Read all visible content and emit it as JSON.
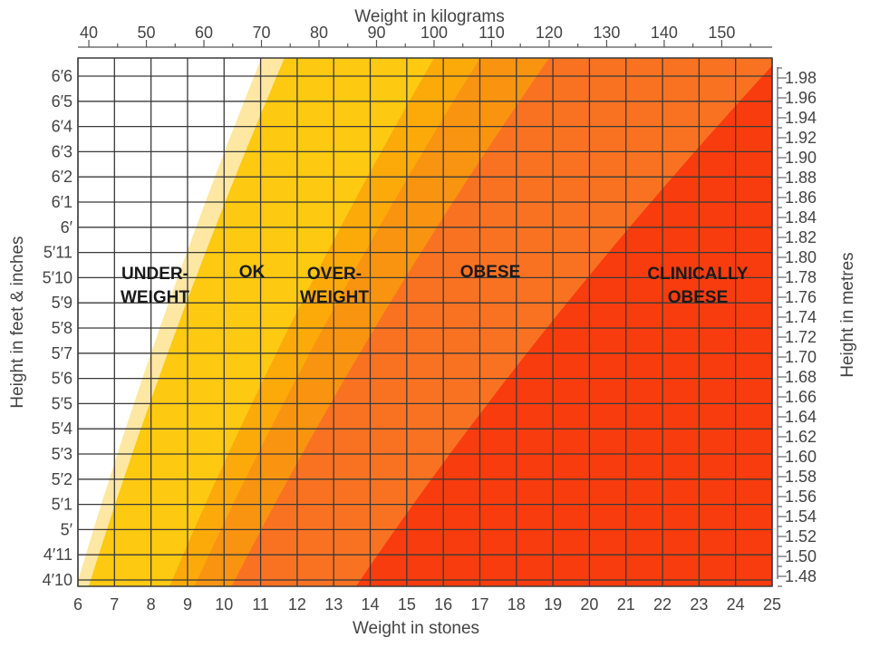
{
  "chart_data": {
    "type": "area",
    "title": "",
    "axes": {
      "bottom": {
        "label": "Weight in stones",
        "range": [
          6,
          25
        ],
        "ticks": [
          "6",
          "7",
          "8",
          "9",
          "10",
          "11",
          "12",
          "13",
          "14",
          "15",
          "16",
          "17",
          "18",
          "19",
          "20",
          "21",
          "22",
          "23",
          "24",
          "25"
        ]
      },
      "top": {
        "label": "Weight in kilograms",
        "ticks": [
          "40",
          "50",
          "60",
          "70",
          "80",
          "90",
          "100",
          "110",
          "120",
          "130",
          "140",
          "150"
        ]
      },
      "left": {
        "label": "Height in feet & inches",
        "ticks": [
          "6′6",
          "6′5",
          "6′4",
          "6′3",
          "6′2",
          "6′1",
          "6′",
          "5′11",
          "5′10",
          "5′9",
          "5′8",
          "5′7",
          "5′6",
          "5′5",
          "5′4",
          "5′3",
          "5′2",
          "5′1",
          "5′",
          "4′11",
          "4′10"
        ]
      },
      "right": {
        "label": "Height in metres",
        "range": [
          1.47,
          2.0
        ],
        "ticks": [
          "1.98",
          "1.96",
          "1.94",
          "1.92",
          "1.90",
          "1.88",
          "1.86",
          "1.84",
          "1.82",
          "1.80",
          "1.78",
          "1.76",
          "1.74",
          "1.72",
          "1.70",
          "1.68",
          "1.66",
          "1.64",
          "1.62",
          "1.60",
          "1.58",
          "1.56",
          "1.54",
          "1.52",
          "1.50",
          "1.48"
        ]
      }
    },
    "grid": true,
    "regions": [
      {
        "label": "UNDER-\nWEIGHT",
        "color": "#ffffff"
      },
      {
        "label": "",
        "color": "#fde7a2"
      },
      {
        "label": "OK",
        "color": "#fdc911"
      },
      {
        "label": "OVER-\nWEIGHT",
        "color": "#fbaa0a"
      },
      {
        "label": "",
        "color": "#f99410"
      },
      {
        "label": "OBESE",
        "color": "#f97222"
      },
      {
        "label": "CLINICALLY\nOBESE",
        "color": "#f83c0e"
      }
    ],
    "boundaries_bmi": [
      17.5,
      18.5,
      25,
      27,
      30,
      40
    ],
    "region_label_colors": {
      "text": "#1a1a1a"
    }
  }
}
